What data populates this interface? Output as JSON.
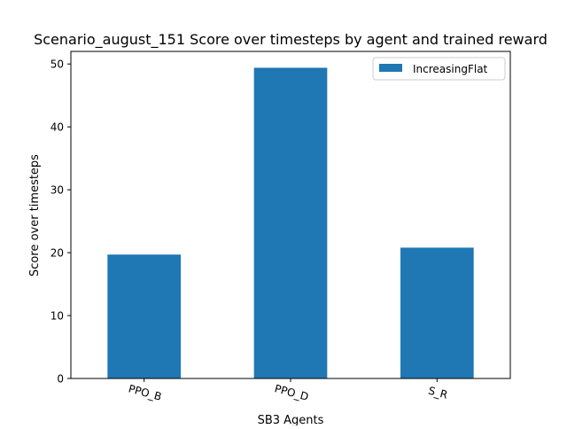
{
  "chart_data": {
    "type": "bar",
    "title": "Scenario_august_151 Score over timesteps by agent and trained reward",
    "xlabel": "SB3 Agents",
    "ylabel": "Score over timesteps",
    "categories": [
      "PPO_B",
      "PPO_D",
      "S_R"
    ],
    "series": [
      {
        "name": "IncreasingFlat",
        "values": [
          19.7,
          49.4,
          20.8
        ],
        "color": "#1f77b4"
      }
    ],
    "yticks": [
      "0",
      "10",
      "20",
      "30",
      "40",
      "50"
    ],
    "ylim": [
      0,
      52
    ],
    "grid": false,
    "legend_position": "top-right"
  }
}
